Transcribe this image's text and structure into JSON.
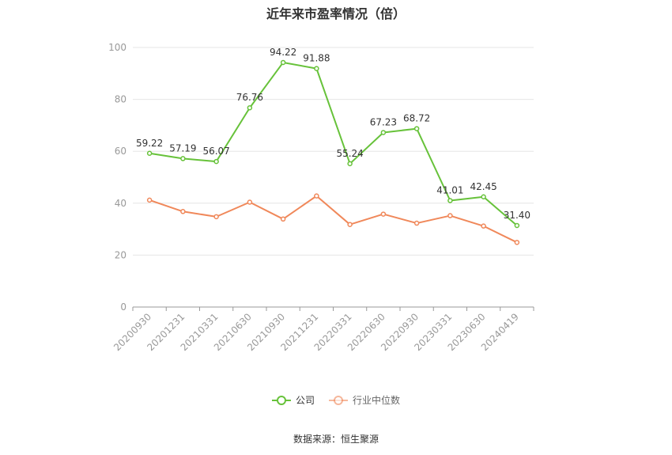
{
  "chart_data": {
    "type": "line",
    "title": "近年来市盈率情况（倍）",
    "categories": [
      "20200930",
      "20201231",
      "20210331",
      "20210630",
      "20210930",
      "20211231",
      "20220331",
      "20220630",
      "20220930",
      "20230331",
      "20230630",
      "20240419"
    ],
    "ylim": [
      0,
      100
    ],
    "yticks": [
      0,
      20,
      40,
      60,
      80,
      100
    ],
    "grid": true,
    "legend_position": "bottom",
    "series": [
      {
        "name": "公司",
        "color": "#67c23a",
        "values": [
          59.22,
          57.19,
          56.07,
          76.76,
          94.22,
          91.88,
          55.24,
          67.23,
          68.72,
          41.01,
          42.45,
          31.4
        ],
        "labels": [
          "59.22",
          "57.19",
          "56.07",
          "76.76",
          "94.22",
          "91.88",
          "55.24",
          "67.23",
          "68.72",
          "41.01",
          "42.45",
          "31.40"
        ]
      },
      {
        "name": "行业中位数",
        "color": "#f0885a",
        "values": [
          41.2,
          36.8,
          34.8,
          40.4,
          33.9,
          42.8,
          31.8,
          35.8,
          32.3,
          35.2,
          31.2,
          24.9
        ]
      }
    ]
  },
  "source": "数据来源：恒生聚源"
}
